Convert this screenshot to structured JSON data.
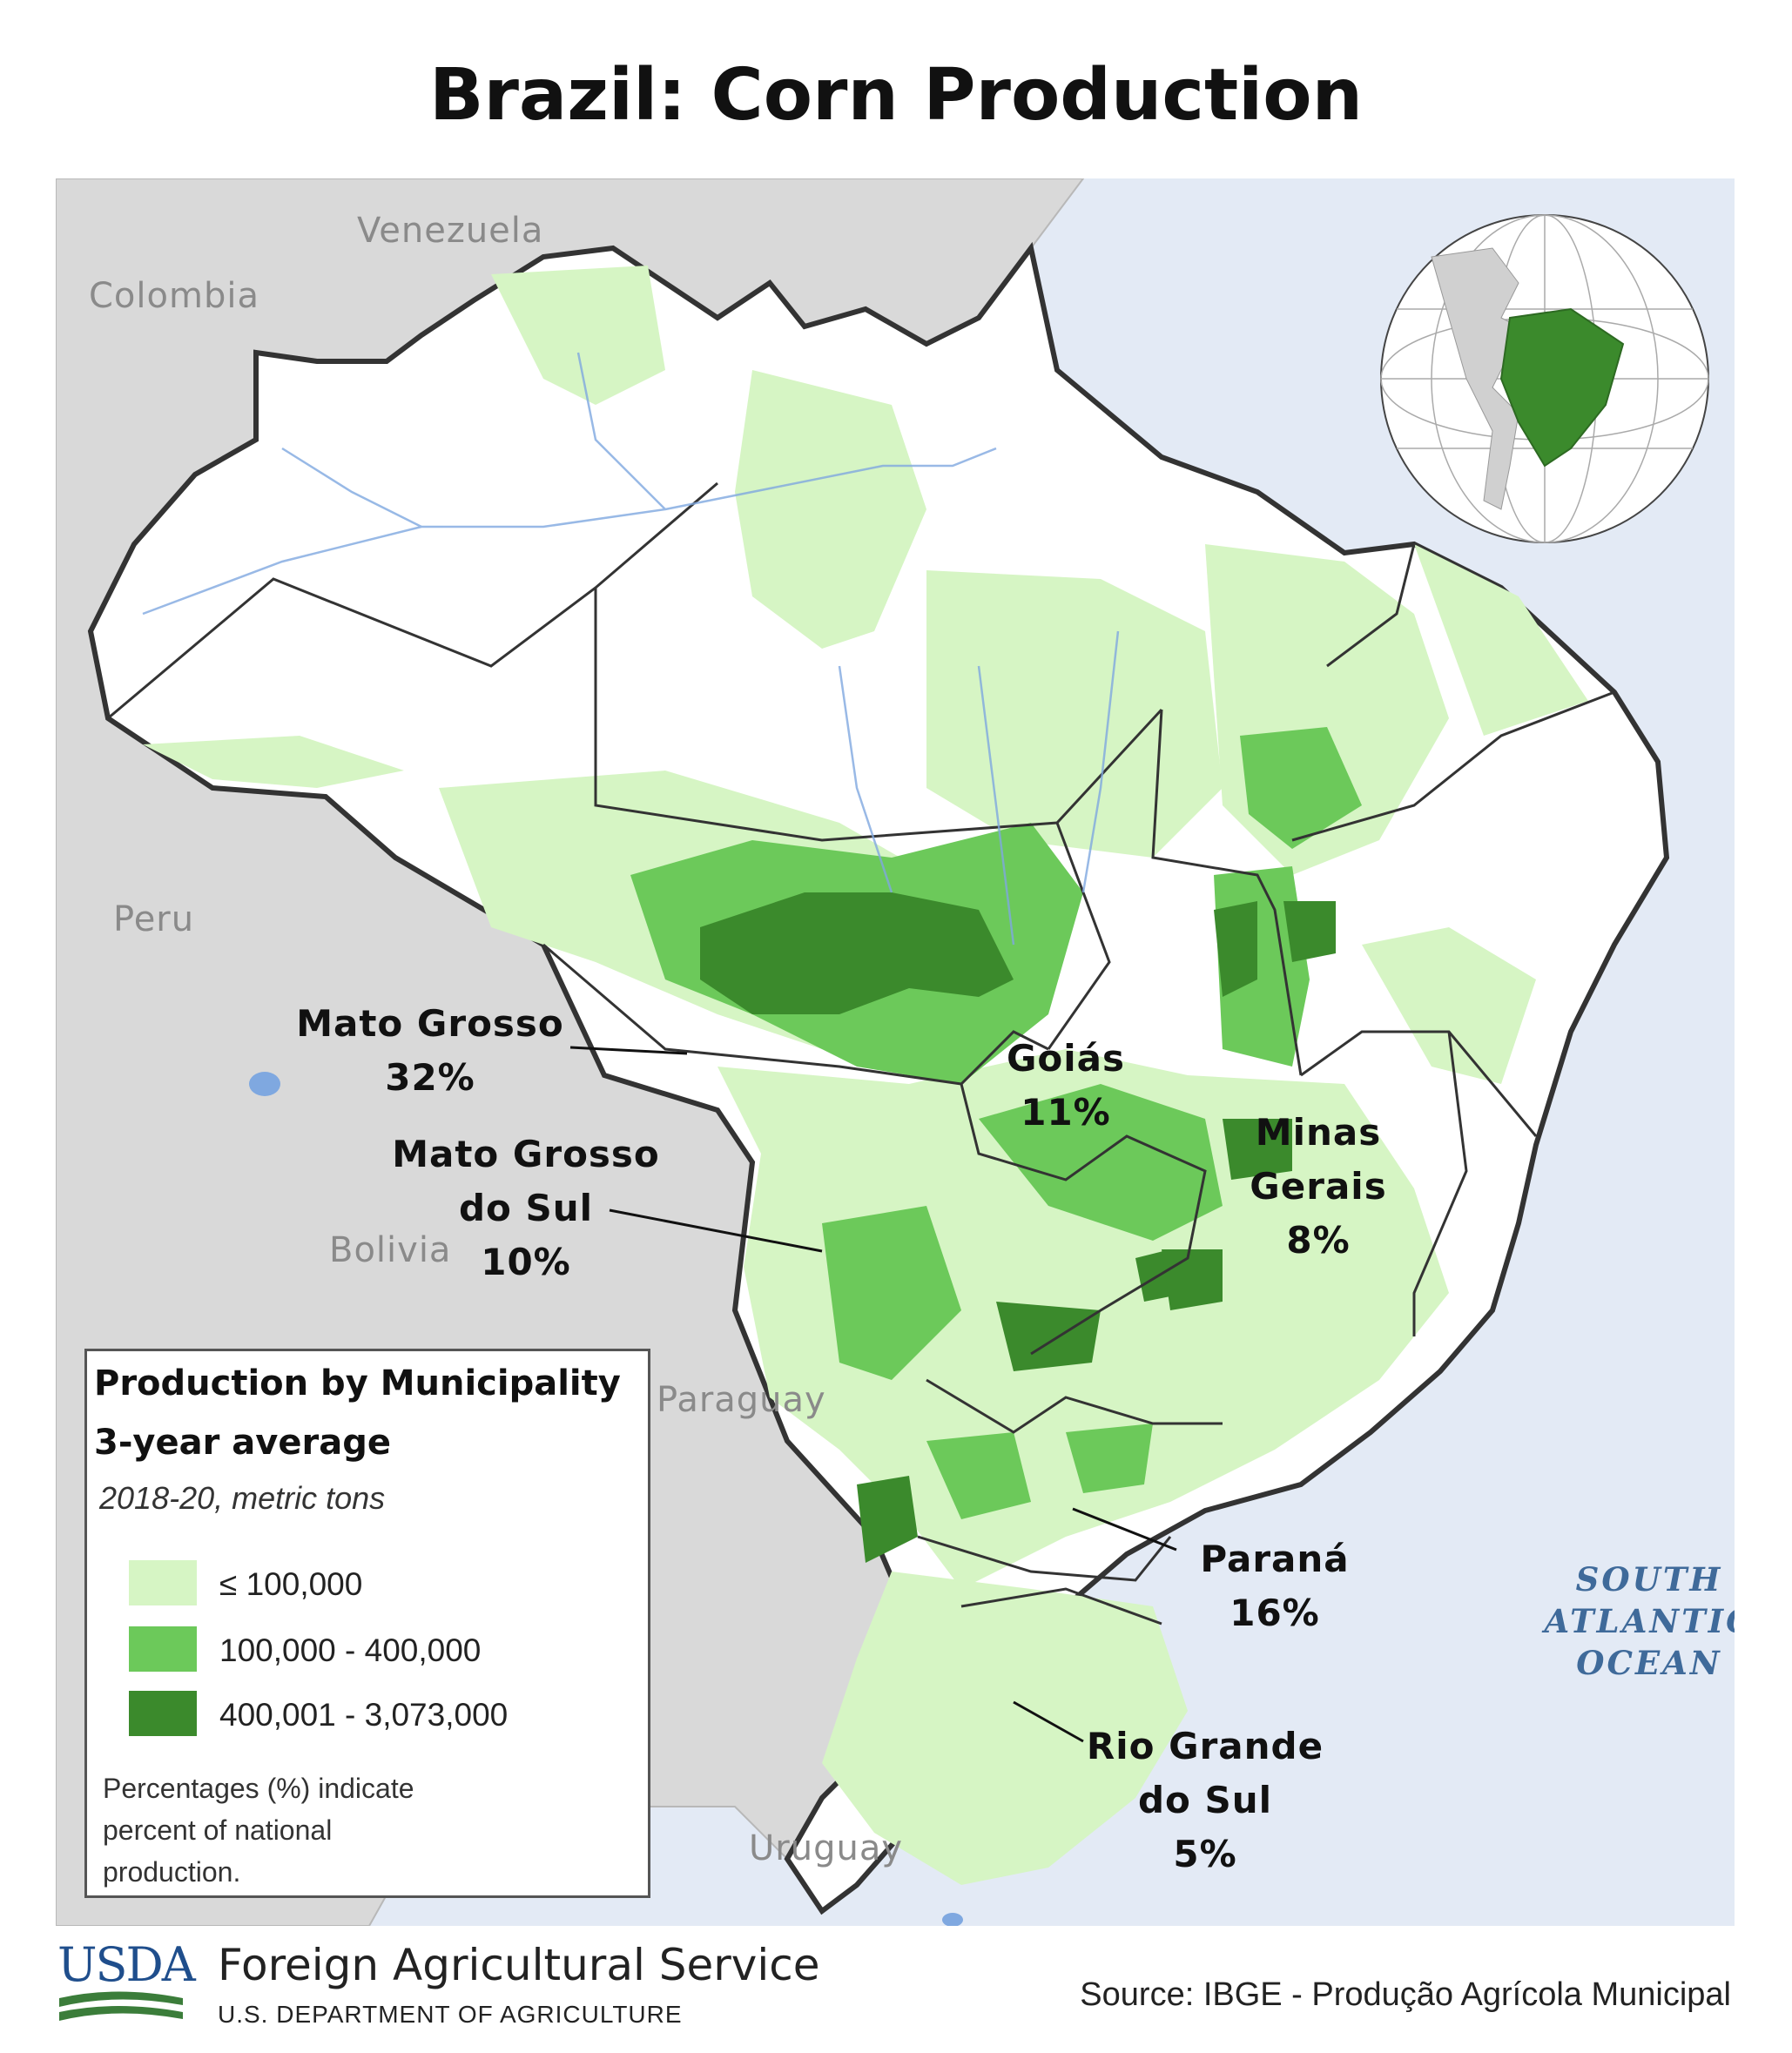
{
  "title": "Brazil: Corn Production",
  "countries": {
    "venezuela": "Venezuela",
    "colombia": "Colombia",
    "peru": "Peru",
    "bolivia": "Bolivia",
    "paraguay": "Paraguay",
    "uruguay": "Uruguay"
  },
  "ocean": [
    "SOUTH",
    "ATLANTIC",
    "OCEAN"
  ],
  "states": {
    "mato_grosso": {
      "name": "Mato Grosso",
      "share": "32%"
    },
    "goias": {
      "name": "Goiás",
      "share": "11%"
    },
    "mato_grosso_do_sul": {
      "name_line1": "Mato Grosso",
      "name_line2": "do Sul",
      "share": "10%"
    },
    "minas_gerais": {
      "name_line1": "Minas",
      "name_line2": "Gerais",
      "share": "8%"
    },
    "parana": {
      "name": "Paraná",
      "share": "16%"
    },
    "rio_grande_do_sul": {
      "name_line1": "Rio Grande",
      "name_line2": "do Sul",
      "share": "5%"
    }
  },
  "legend": {
    "title_line1": "Production by Municipality",
    "title_line2": "3-year average",
    "subtitle": "2018-20, metric tons",
    "classes": [
      {
        "label": "≤ 100,000",
        "color": "#d6f5c4"
      },
      {
        "label": "100,000 - 400,000",
        "color": "#6cc95a"
      },
      {
        "label": "400,001 - 3,073,000",
        "color": "#3b8a2c"
      }
    ],
    "note": "Percentages (%) indicate percent of national production."
  },
  "footer": {
    "agency_abbr": "USDA",
    "agency_name": "Foreign Agricultural Service",
    "department": "U.S. DEPARTMENT OF AGRICULTURE",
    "source": "Source: IBGE - Produção Agrícola Municipal"
  },
  "colors": {
    "ocean": "#e3eaf5",
    "neighbor_land": "#d9d9d9",
    "brazil_base": "#ffffff",
    "low": "#d6f5c4",
    "mid": "#6cc95a",
    "high": "#3b8a2c",
    "usda_blue": "#1f4e8c",
    "usda_green": "#3b7d3a"
  }
}
